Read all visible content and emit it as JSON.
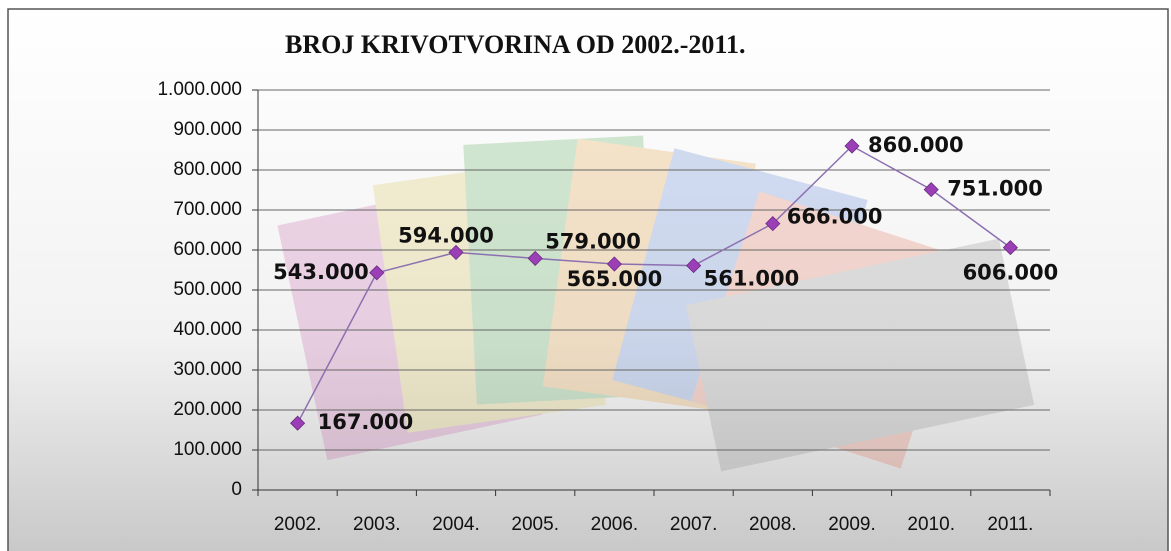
{
  "chart_data": {
    "type": "line",
    "title": "BROJ KRIVOTVORINA OD 2002.-2011.",
    "categories": [
      "2002.",
      "2003.",
      "2004.",
      "2005.",
      "2006.",
      "2007.",
      "2008.",
      "2009.",
      "2010.",
      "2011."
    ],
    "values": [
      167000,
      543000,
      594000,
      579000,
      565000,
      561000,
      666000,
      860000,
      751000,
      606000
    ],
    "value_labels": [
      "167.000",
      "543.000",
      "594.000",
      "579.000",
      "565.000",
      "561.000",
      "666.000",
      "860.000",
      "751.000",
      "606.000"
    ],
    "line_color": "#8c70b0",
    "marker_color": "#9a3fb5",
    "ylim": [
      0,
      1000000
    ],
    "yticks": [
      0,
      {
        "value": 100000,
        "label": "100.000"
      },
      {
        "value": 200000,
        "label": "200.000"
      },
      {
        "value": 300000,
        "label": "300.000"
      },
      {
        "value": 400000,
        "label": "400.000"
      },
      {
        "value": 500000,
        "label": "500.000"
      },
      {
        "value": 600000,
        "label": "600.000"
      },
      {
        "value": 700000,
        "label": "700.000"
      },
      {
        "value": 800000,
        "label": "800.000"
      },
      {
        "value": 900000,
        "label": "900.000"
      },
      {
        "value": 1000000,
        "label": "1.000.000"
      }
    ],
    "grid": true
  }
}
